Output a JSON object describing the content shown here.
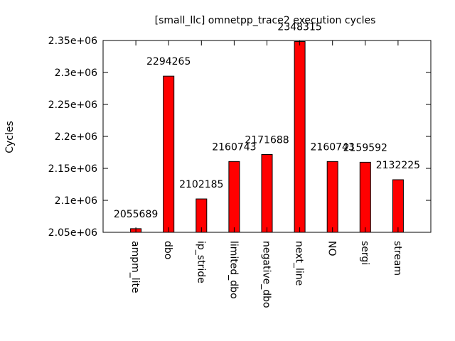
{
  "chart_data": {
    "type": "bar",
    "title": "[small_llc] omnetpp_trace2 execution cycles",
    "xlabel": "",
    "ylabel": "Cycles",
    "categories": [
      "ampm_lite",
      "dbo",
      "ip_stride",
      "limited_dbo",
      "negative_dbo",
      "next_line",
      "NO",
      "sergi",
      "stream"
    ],
    "values": [
      2055689,
      2294265,
      2102185,
      2160743,
      2171688,
      2348315,
      2160743,
      2159592,
      2132225
    ],
    "data_labels": [
      "2055689",
      "2294265",
      "2102185",
      "2160743",
      "2171688",
      "2348315",
      "2160743",
      "2159592",
      "2132225"
    ],
    "ylim": [
      2050000,
      2350000
    ],
    "yticks": [
      2050000,
      2100000,
      2150000,
      2200000,
      2250000,
      2300000,
      2350000
    ],
    "ytick_labels": [
      "2.05e+06",
      "2.1e+06",
      "2.15e+06",
      "2.2e+06",
      "2.25e+06",
      "2.3e+06",
      "2.35e+06"
    ],
    "bar_color": "#ff0000",
    "grid": false,
    "legend": "none"
  }
}
